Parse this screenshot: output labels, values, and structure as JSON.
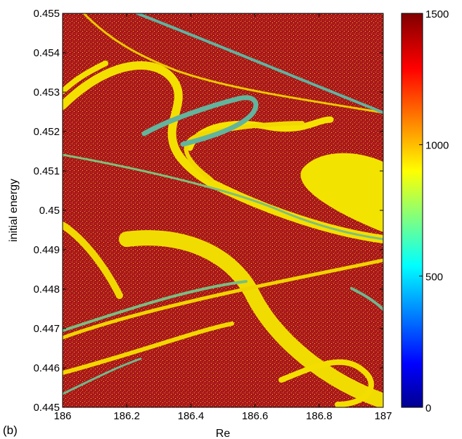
{
  "panel_label": "(b)",
  "chart_data": {
    "type": "heatmap",
    "title": "",
    "xlabel": "Re",
    "ylabel": "initial energy",
    "xlim": [
      186,
      187
    ],
    "ylim": [
      0.445,
      0.455
    ],
    "x_ticks": [
      "186",
      "186.2",
      "186.4",
      "186.6",
      "186.8",
      "187"
    ],
    "y_ticks": [
      "0.445",
      "0.446",
      "0.447",
      "0.448",
      "0.449",
      "0.45",
      "0.451",
      "0.452",
      "0.453",
      "0.454",
      "0.455"
    ],
    "colorbar": {
      "range": [
        0,
        1500
      ],
      "ticks": [
        "0",
        "500",
        "1000",
        "1500"
      ],
      "colormap": "jet"
    },
    "description_colors": {
      "high": "#a8141c",
      "mid_high": "#f2e600",
      "mid": "#5cb8a0"
    }
  }
}
